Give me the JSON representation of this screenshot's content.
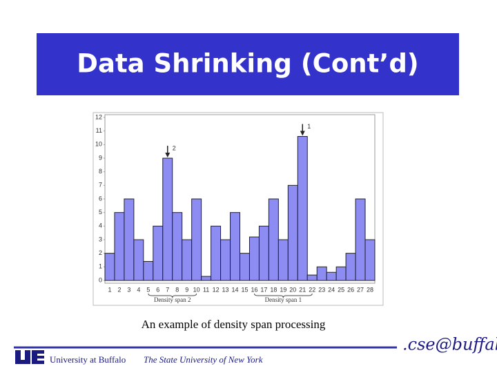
{
  "slide": {
    "title": "Data Shrinking (Cont’d)",
    "caption": "An example of density span processing",
    "footer": {
      "university": "University at Buffalo",
      "state": "The State University of New York",
      "brand": ".cse@buffalo"
    }
  },
  "chart_data": {
    "type": "bar",
    "categories": [
      "1",
      "2",
      "3",
      "4",
      "5",
      "6",
      "7",
      "8",
      "9",
      "10",
      "11",
      "12",
      "13",
      "14",
      "15",
      "16",
      "17",
      "18",
      "19",
      "20",
      "21",
      "22",
      "23",
      "24",
      "25",
      "26",
      "27",
      "28"
    ],
    "values": [
      2,
      5,
      6,
      3,
      1.4,
      4,
      9,
      5,
      3,
      6,
      0.3,
      4,
      3,
      5,
      2,
      3.2,
      4,
      6,
      3,
      7,
      10.6,
      0.4,
      1,
      0.6,
      1,
      2,
      6,
      3
    ],
    "color": "#8c8cf2",
    "ylim": [
      0,
      12
    ],
    "yticks": [
      0,
      1,
      2,
      3,
      4,
      5,
      6,
      7,
      8,
      9,
      10,
      11,
      12
    ],
    "grid": false,
    "annotations": [
      {
        "text": "2"
      },
      {
        "text": "1"
      }
    ],
    "spans": [
      "Density span 2",
      "Density span 1"
    ]
  }
}
